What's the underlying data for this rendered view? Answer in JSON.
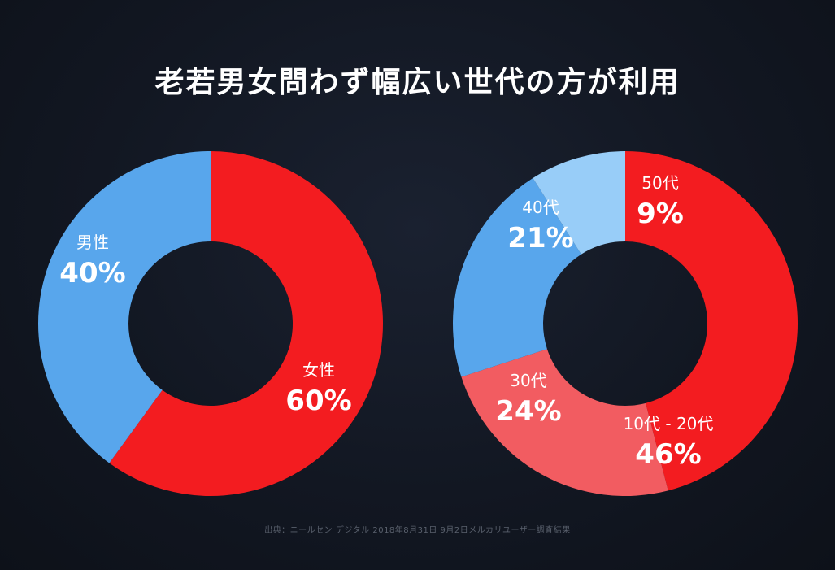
{
  "title": "老若男女問わず幅広い世代の方が利用",
  "footnote": "出典：ニールセン デジタル 2018年8月31日 9月2日メルカリユーザー調査結果",
  "colors": {
    "blue": "#58a6ec",
    "light_blue": "#98cdf8",
    "red": "#f31c20",
    "light_red": "#f25c61",
    "background": "#121722"
  },
  "chart_data": [
    {
      "type": "pie",
      "donut": true,
      "slices": [
        {
          "label": "女性",
          "value": 60,
          "display": "60%",
          "color": "#f31c20"
        },
        {
          "label": "男性",
          "value": 40,
          "display": "40%",
          "color": "#58a6ec"
        }
      ]
    },
    {
      "type": "pie",
      "donut": true,
      "slices": [
        {
          "label": "10代 - 20代",
          "value": 46,
          "display": "46%",
          "color": "#f31c20"
        },
        {
          "label": "30代",
          "value": 24,
          "display": "24%",
          "color": "#f25c61"
        },
        {
          "label": "40代",
          "value": 21,
          "display": "21%",
          "color": "#58a6ec"
        },
        {
          "label": "50代",
          "value": 9,
          "display": "9%",
          "color": "#98cdf8"
        }
      ]
    }
  ]
}
